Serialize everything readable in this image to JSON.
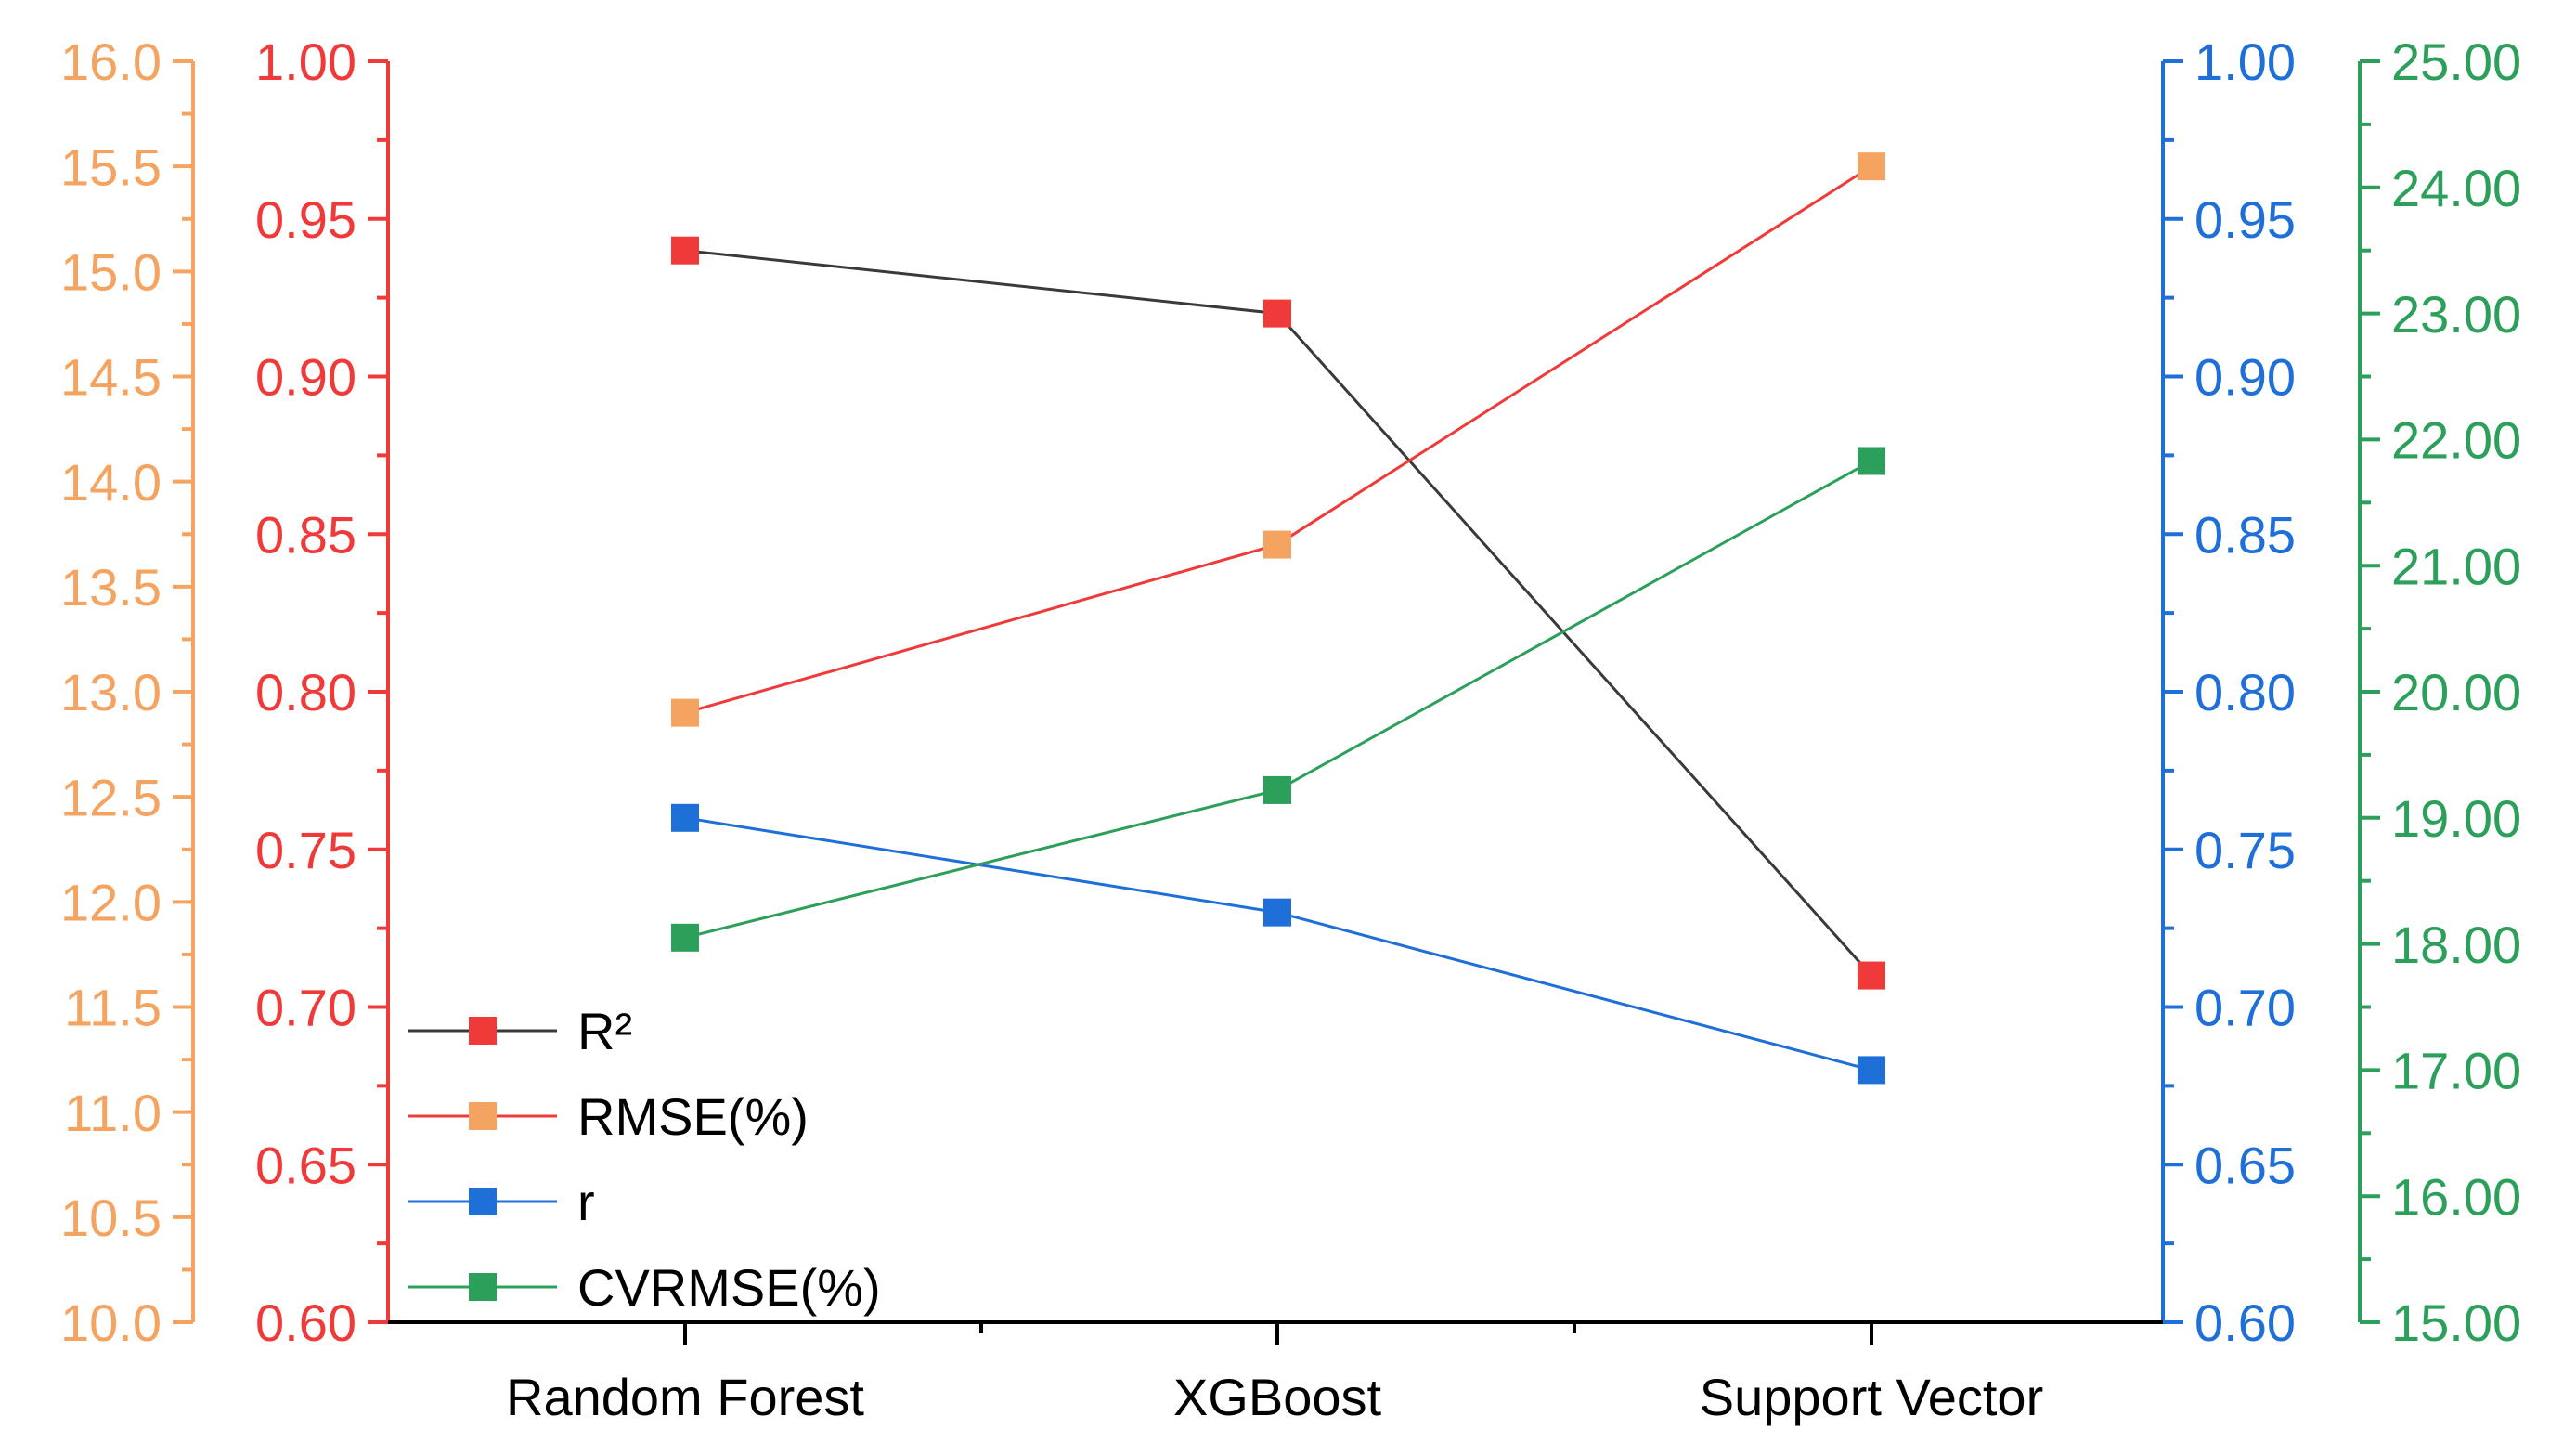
{
  "chart_data": {
    "type": "line",
    "categories": [
      "Random Forest",
      "XGBoost",
      "Support Vector"
    ],
    "axes": {
      "rmse": {
        "side": "left-outer",
        "color": "#F4A460",
        "ylim": [
          10.0,
          16.0
        ],
        "ticks": [
          "10.0",
          "10.5",
          "11.0",
          "11.5",
          "12.0",
          "12.5",
          "13.0",
          "13.5",
          "14.0",
          "14.5",
          "15.0",
          "15.5",
          "16.0"
        ]
      },
      "r2": {
        "side": "left-inner",
        "color": "#F03A3A",
        "ylim": [
          0.6,
          1.0
        ],
        "ticks": [
          "0.60",
          "0.65",
          "0.70",
          "0.75",
          "0.80",
          "0.85",
          "0.90",
          "0.95",
          "1.00"
        ]
      },
      "r": {
        "side": "right-inner",
        "color": "#1F6FD9",
        "ylim": [
          0.6,
          1.0
        ],
        "ticks": [
          "0.60",
          "0.65",
          "0.70",
          "0.75",
          "0.80",
          "0.85",
          "0.90",
          "0.95",
          "1.00"
        ]
      },
      "cvrmse": {
        "side": "right-outer",
        "color": "#2CA05A",
        "ylim": [
          15.0,
          25.0
        ],
        "ticks": [
          "15.00",
          "16.00",
          "17.00",
          "18.00",
          "19.00",
          "20.00",
          "21.00",
          "22.00",
          "23.00",
          "24.00",
          "25.00"
        ]
      }
    },
    "series": [
      {
        "name": "R²",
        "axis": "r2",
        "values": [
          0.94,
          0.92,
          0.71
        ],
        "marker_color": "#F03A3A",
        "line_color": "#3A3A3A"
      },
      {
        "name": "RMSE(%)",
        "axis": "rmse",
        "values": [
          12.9,
          13.7,
          15.5
        ],
        "marker_color": "#F4A460",
        "line_color": "#F03A3A"
      },
      {
        "name": "r",
        "axis": "r",
        "values": [
          0.76,
          0.73,
          0.68
        ],
        "marker_color": "#1F6FD9",
        "line_color": "#1F6FD9"
      },
      {
        "name": "CVRMSE(%)",
        "axis": "cvrmse",
        "values": [
          18.05,
          19.22,
          21.83
        ],
        "marker_color": "#2CA05A",
        "line_color": "#2CA05A"
      }
    ],
    "title": "",
    "xlabel": "",
    "legend": "bottom-left"
  }
}
